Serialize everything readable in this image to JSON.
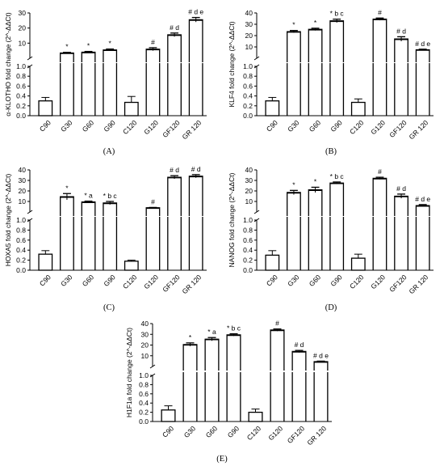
{
  "figure": {
    "panels": [
      "(A)",
      "(B)",
      "(C)",
      "(D)",
      "(E)"
    ]
  },
  "chart_data": [
    {
      "type": "bar",
      "panel": "(A)",
      "ylabel": "α-KLOTHO fold change (2^-ΔΔCt)",
      "categories": [
        "C90",
        "G30",
        "G60",
        "G90",
        "C120",
        "G120",
        "GF120",
        "GR 120"
      ],
      "values": [
        0.3,
        3.5,
        4.0,
        5.5,
        0.27,
        6.0,
        15.5,
        25.5
      ],
      "errors": [
        0.07,
        0.4,
        0.5,
        0.6,
        0.12,
        1.0,
        1.2,
        1.5
      ],
      "annotations": [
        "",
        "*",
        "*",
        "*",
        "",
        "#",
        "# d",
        "# d e"
      ],
      "y_lower_range": [
        0,
        1
      ],
      "y_lower_ticks": [
        "0.0",
        "0.2",
        "0.4",
        "0.6",
        "0.8",
        "1.0"
      ],
      "y_upper_range": [
        0,
        30
      ],
      "y_upper_ticks": [
        "10",
        "20",
        "30"
      ],
      "y_axis_break": true
    },
    {
      "type": "bar",
      "panel": "(B)",
      "ylabel": "KLF4 fold change (2^-ΔΔCt)",
      "categories": [
        "C90",
        "G30",
        "G60",
        "G90",
        "C120",
        "G120",
        "GF120",
        "GR 120"
      ],
      "values": [
        0.3,
        23.5,
        25.5,
        33.0,
        0.27,
        34.5,
        17.0,
        7.5
      ],
      "errors": [
        0.07,
        1.0,
        1.0,
        1.5,
        0.07,
        1.0,
        2.0,
        0.5
      ],
      "annotations": [
        "",
        "*",
        "*",
        "* b c",
        "",
        "#",
        "# d",
        "# d e"
      ],
      "y_lower_range": [
        0,
        1
      ],
      "y_lower_ticks": [
        "0.0",
        "0.2",
        "0.4",
        "0.6",
        "0.8",
        "1.0"
      ],
      "y_upper_range": [
        0,
        40
      ],
      "y_upper_ticks": [
        "10",
        "20",
        "30",
        "40"
      ],
      "y_axis_break": true
    },
    {
      "type": "bar",
      "panel": "(C)",
      "ylabel": "HOXA5 fold change (2^-ΔΔCt)",
      "categories": [
        "C90",
        "G30",
        "G60",
        "G90",
        "C120",
        "G120",
        "GF120",
        "GR 120"
      ],
      "values": [
        0.32,
        14.5,
        9.5,
        8.5,
        0.18,
        4.0,
        33.0,
        34.0
      ],
      "errors": [
        0.07,
        3.0,
        0.8,
        1.5,
        0.02,
        0.3,
        1.5,
        1.5
      ],
      "annotations": [
        "",
        "*",
        "* a",
        "* b c",
        "",
        "#",
        "# d",
        "# d"
      ],
      "y_lower_range": [
        0,
        1
      ],
      "y_lower_ticks": [
        "0.0",
        "0.2",
        "0.4",
        "0.6",
        "0.8",
        "1.0"
      ],
      "y_upper_range": [
        0,
        40
      ],
      "y_upper_ticks": [
        "10",
        "20",
        "30",
        "40"
      ],
      "y_axis_break": true
    },
    {
      "type": "bar",
      "panel": "(D)",
      "ylabel": "NANOG fold change (2^-ΔΔCt)",
      "categories": [
        "C90",
        "G30",
        "G60",
        "G90",
        "C120",
        "G120",
        "GF120",
        "GR 120"
      ],
      "values": [
        0.3,
        18.5,
        21.0,
        27.5,
        0.24,
        32.0,
        15.0,
        6.0
      ],
      "errors": [
        0.09,
        2.0,
        2.5,
        1.0,
        0.08,
        1.0,
        2.0,
        1.0
      ],
      "annotations": [
        "",
        "*",
        "*",
        "* b c",
        "",
        "#",
        "# d",
        "# d e"
      ],
      "y_lower_range": [
        0,
        1
      ],
      "y_lower_ticks": [
        "0.0",
        "0.2",
        "0.4",
        "0.6",
        "0.8",
        "1.0"
      ],
      "y_upper_range": [
        0,
        40
      ],
      "y_upper_ticks": [
        "10",
        "20",
        "30",
        "40"
      ],
      "y_axis_break": true
    },
    {
      "type": "bar",
      "panel": "(E)",
      "ylabel": "H1F1a fold change (2^-ΔΔCt)",
      "categories": [
        "C90",
        "G30",
        "G60",
        "G90",
        "C120",
        "G120",
        "GF120",
        "GR 120"
      ],
      "values": [
        0.25,
        20.5,
        25.5,
        29.5,
        0.2,
        34.0,
        14.0,
        4.5
      ],
      "errors": [
        0.09,
        1.5,
        1.5,
        1.0,
        0.07,
        1.0,
        1.0,
        0.5
      ],
      "annotations": [
        "",
        "*",
        "* a",
        "* b c",
        "",
        "#",
        "# d",
        "# d e"
      ],
      "y_lower_range": [
        0,
        1
      ],
      "y_lower_ticks": [
        "0.0",
        "0.2",
        "0.4",
        "0.6",
        "0.8",
        "1.0"
      ],
      "y_upper_range": [
        0,
        40
      ],
      "y_upper_ticks": [
        "10",
        "20",
        "30",
        "40"
      ],
      "y_axis_break": true
    }
  ]
}
